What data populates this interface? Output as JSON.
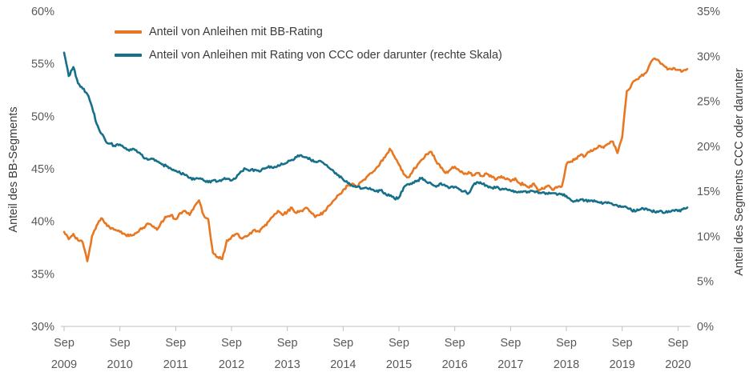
{
  "colors": {
    "bb": "#E87722",
    "ccc": "#17708A",
    "axis_text": "#595959",
    "axis_line": "#BFBFBF"
  },
  "legend": [
    {
      "id": "bb",
      "label": "Anteil von Anleihen mit BB-Rating"
    },
    {
      "id": "ccc",
      "label": "Anteil von Anleihen mit Rating von CCC oder darunter (rechte Skala)"
    }
  ],
  "left_axis": {
    "title": "Anteil des BB-Segments",
    "min": 30,
    "max": 60,
    "step": 5,
    "suffix": "%"
  },
  "right_axis": {
    "title": "Anteil des Segments CCC oder darunter",
    "min": 0,
    "max": 35,
    "step": 5,
    "suffix": "%"
  },
  "x_axis": {
    "month_label": "Sep",
    "years": [
      "2009",
      "2010",
      "2011",
      "2012",
      "2013",
      "2014",
      "2015",
      "2016",
      "2017",
      "2018",
      "2019",
      "2020"
    ],
    "tick_indices": [
      0,
      12,
      24,
      36,
      48,
      60,
      72,
      84,
      96,
      108,
      120,
      132
    ]
  },
  "chart_data": {
    "type": "line",
    "x_unit": "month",
    "x_start": "2009-09",
    "grid": false,
    "legend_position": "top-left",
    "series": [
      {
        "name": "Anteil von Anleihen mit BB-Rating",
        "axis": "left",
        "color_key": "bb",
        "values": [
          39.0,
          38.3,
          38.8,
          38.2,
          38.0,
          36.2,
          38.6,
          39.6,
          40.3,
          39.8,
          39.3,
          39.2,
          39.0,
          38.8,
          38.6,
          38.7,
          39.0,
          39.4,
          39.8,
          39.5,
          39.2,
          40.0,
          40.4,
          40.6,
          40.2,
          40.8,
          41.0,
          40.6,
          41.4,
          42.0,
          40.6,
          40.2,
          37.0,
          36.6,
          36.4,
          38.2,
          38.5,
          38.8,
          38.4,
          38.6,
          38.9,
          39.2,
          39.0,
          39.5,
          40.0,
          40.5,
          41.0,
          40.6,
          40.9,
          41.3,
          40.8,
          41.0,
          41.3,
          40.9,
          40.4,
          40.6,
          41.0,
          41.5,
          42.0,
          42.5,
          43.0,
          43.4,
          43.6,
          43.3,
          43.8,
          44.2,
          44.6,
          45.0,
          45.6,
          46.1,
          46.9,
          46.2,
          45.4,
          44.5,
          44.2,
          44.8,
          45.4,
          45.9,
          46.4,
          46.6,
          45.7,
          45.1,
          44.6,
          44.9,
          45.2,
          44.8,
          44.5,
          44.7,
          44.4,
          44.6,
          44.3,
          44.5,
          44.2,
          44.0,
          44.3,
          44.0,
          43.8,
          44.1,
          43.6,
          43.5,
          43.2,
          43.6,
          42.9,
          43.1,
          43.4,
          43.0,
          43.2,
          43.3,
          45.4,
          45.7,
          46.0,
          46.3,
          46.2,
          46.6,
          46.9,
          47.2,
          47.0,
          47.4,
          47.6,
          46.5,
          48.0,
          52.4,
          53.0,
          53.5,
          53.8,
          54.1,
          55.0,
          55.5,
          55.2,
          54.8,
          54.5,
          54.6,
          54.4,
          54.3,
          54.5
        ]
      },
      {
        "name": "Anteil von Anleihen mit Rating von CCC oder darunter (rechte Skala)",
        "axis": "right",
        "color_key": "ccc",
        "values": [
          30.4,
          27.8,
          28.8,
          27.0,
          26.4,
          25.8,
          24.4,
          22.5,
          21.4,
          20.5,
          20.3,
          20.0,
          20.2,
          19.8,
          19.5,
          19.7,
          19.3,
          18.8,
          18.5,
          18.6,
          18.3,
          18.0,
          17.8,
          17.5,
          17.3,
          17.0,
          16.8,
          16.5,
          16.3,
          16.4,
          16.2,
          16.0,
          16.2,
          16.1,
          16.3,
          16.4,
          16.2,
          16.5,
          17.2,
          17.5,
          17.3,
          17.4,
          17.2,
          17.5,
          17.8,
          17.6,
          17.9,
          18.0,
          18.2,
          18.5,
          18.8,
          19.0,
          18.8,
          18.5,
          18.3,
          18.4,
          18.0,
          17.6,
          17.2,
          16.8,
          16.3,
          15.9,
          15.6,
          15.5,
          15.3,
          15.4,
          15.2,
          15.0,
          15.1,
          14.8,
          14.5,
          14.2,
          14.3,
          15.4,
          15.8,
          16.0,
          16.2,
          16.5,
          16.0,
          15.8,
          15.5,
          15.9,
          15.6,
          15.4,
          15.5,
          15.2,
          15.0,
          14.8,
          15.7,
          16.0,
          15.8,
          15.6,
          15.4,
          15.5,
          15.2,
          15.3,
          15.1,
          15.0,
          14.9,
          15.0,
          14.9,
          15.0,
          14.8,
          14.9,
          14.7,
          14.8,
          14.6,
          14.7,
          14.5,
          14.0,
          13.9,
          14.1,
          14.0,
          13.9,
          14.0,
          13.8,
          13.7,
          13.8,
          13.5,
          13.4,
          13.3,
          13.2,
          12.9,
          12.8,
          13.0,
          13.1,
          12.9,
          12.7,
          12.8,
          12.6,
          12.8,
          12.9,
          12.8,
          13.0,
          13.2
        ]
      }
    ]
  }
}
